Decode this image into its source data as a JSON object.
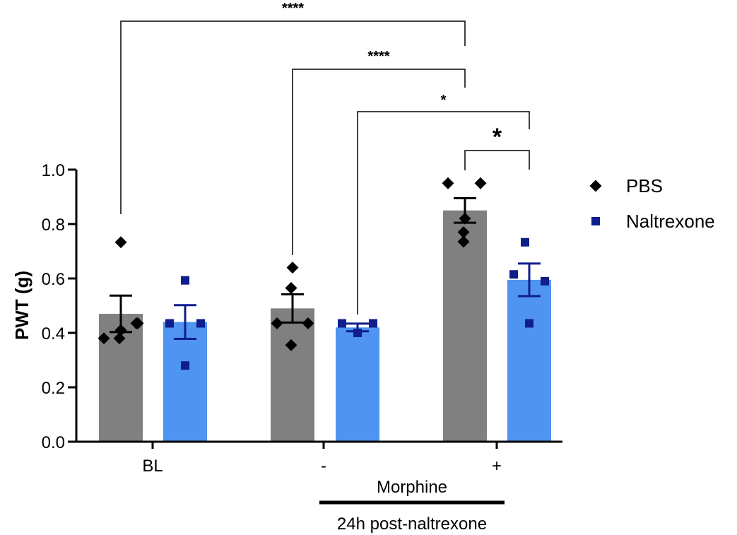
{
  "chart_data": {
    "type": "bar",
    "ylabel": "PWT (g)",
    "ylim": [
      0,
      1.0
    ],
    "yticks": [
      "0.0",
      "0.2",
      "0.4",
      "0.6",
      "0.8",
      "1.0"
    ],
    "categories": [
      "BL",
      "-",
      "+"
    ],
    "grid": false,
    "legend_position": "right",
    "series": [
      {
        "name": "PBS",
        "color": "#808080",
        "marker_color": "#000000",
        "marker": "diamond",
        "values": [
          0.47,
          0.49,
          0.85
        ],
        "sem": [
          0.067,
          0.052,
          0.045
        ],
        "points": [
          [
            0.733,
            0.435,
            0.41,
            0.38,
            0.38,
            0.435
          ],
          [
            0.64,
            0.565,
            0.435,
            0.435,
            0.355
          ],
          [
            0.95,
            0.95,
            0.82,
            0.77,
            0.735
          ]
        ]
      },
      {
        "name": "Naltrexone",
        "color": "#4f94f0",
        "marker_color": "#0f1e8c",
        "marker": "square",
        "values": [
          0.44,
          0.42,
          0.595
        ],
        "sem": [
          0.062,
          0.014,
          0.06
        ],
        "points": [
          [
            0.593,
            0.435,
            0.435,
            0.28
          ],
          [
            0.435,
            0.435,
            0.4,
            0.4
          ],
          [
            0.733,
            0.615,
            0.59,
            0.435
          ]
        ]
      }
    ],
    "significance": [
      "****",
      "****",
      "*",
      "*"
    ],
    "group_label_morphine": "Morphine",
    "group_label_post": "24h post-naltrexone"
  }
}
